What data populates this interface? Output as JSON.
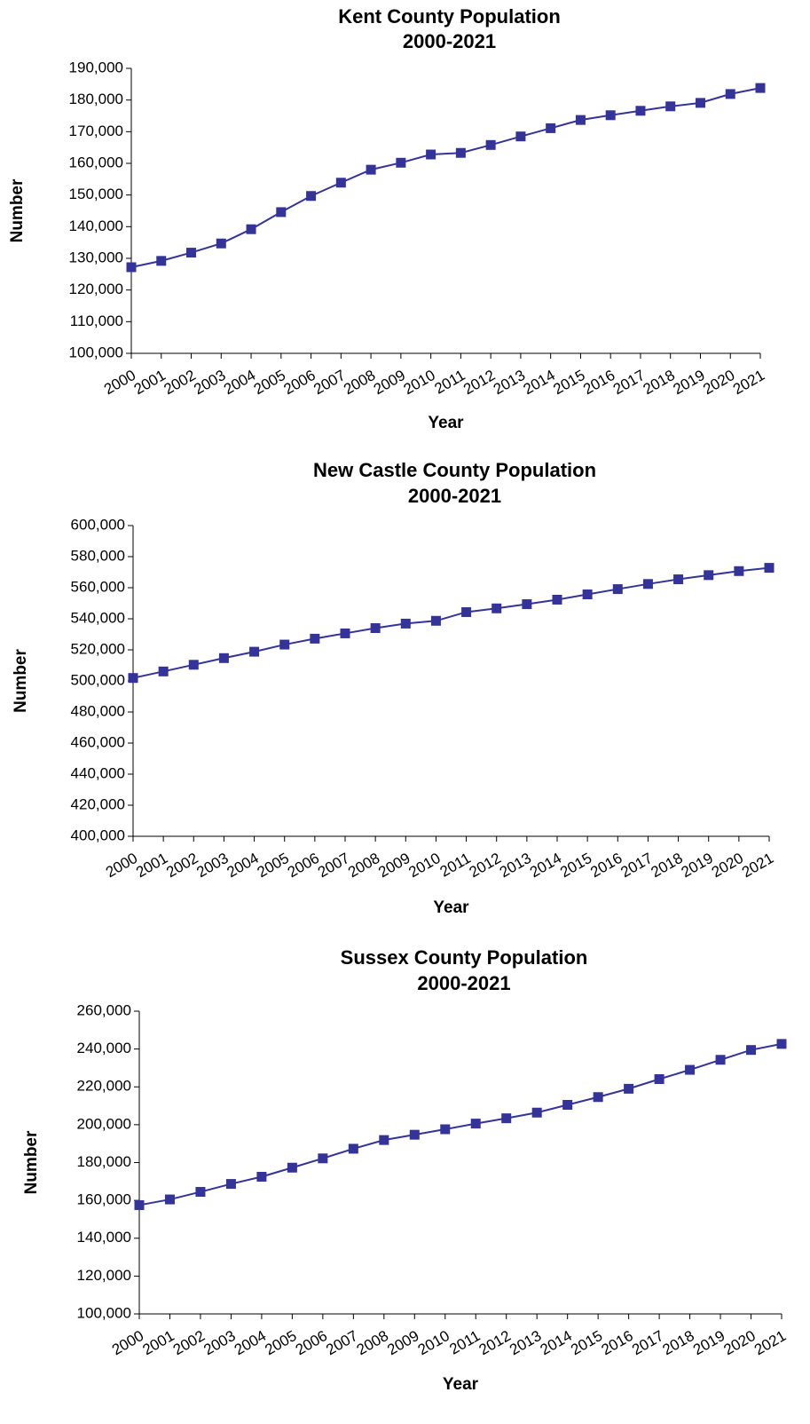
{
  "colors": {
    "series": "#333399",
    "axis": "#000000",
    "background": "#ffffff"
  },
  "chart_data": [
    {
      "type": "line",
      "title": "Kent County Population",
      "subtitle": "2000-2021",
      "xlabel": "Year",
      "ylabel": "Number",
      "ylim": [
        100000,
        190000
      ],
      "ytick_step": 10000,
      "yticks": [
        "100,000",
        "110,000",
        "120,000",
        "130,000",
        "140,000",
        "150,000",
        "160,000",
        "170,000",
        "180,000",
        "190,000"
      ],
      "grid": false,
      "x": [
        "2000",
        "2001",
        "2002",
        "2003",
        "2004",
        "2005",
        "2006",
        "2007",
        "2008",
        "2009",
        "2010",
        "2011",
        "2012",
        "2013",
        "2014",
        "2015",
        "2016",
        "2017",
        "2018",
        "2019",
        "2020",
        "2021"
      ],
      "series": [
        {
          "marker": "square",
          "color": "#333399",
          "values": [
            127200,
            129200,
            131800,
            134700,
            139200,
            144600,
            149700,
            153900,
            158000,
            160200,
            162800,
            163300,
            165800,
            168500,
            171100,
            173700,
            175200,
            176600,
            178000,
            179100,
            181900,
            183800
          ]
        }
      ]
    },
    {
      "type": "line",
      "title": "New Castle County Population",
      "subtitle": "2000-2021",
      "xlabel": "Year",
      "ylabel": "Number",
      "ylim": [
        400000,
        600000
      ],
      "ytick_step": 20000,
      "yticks": [
        "400,000",
        "420,000",
        "440,000",
        "460,000",
        "480,000",
        "500,000",
        "520,000",
        "540,000",
        "560,000",
        "580,000",
        "600,000"
      ],
      "grid": false,
      "x": [
        "2000",
        "2001",
        "2002",
        "2003",
        "2004",
        "2005",
        "2006",
        "2007",
        "2008",
        "2009",
        "2010",
        "2011",
        "2012",
        "2013",
        "2014",
        "2015",
        "2016",
        "2017",
        "2018",
        "2019",
        "2020",
        "2021"
      ],
      "series": [
        {
          "marker": "square",
          "color": "#333399",
          "values": [
            501900,
            506100,
            510400,
            514700,
            518800,
            523400,
            527200,
            530600,
            534000,
            536900,
            538700,
            544300,
            546700,
            549400,
            552300,
            555700,
            559100,
            562400,
            565400,
            568100,
            570700,
            572800
          ]
        }
      ]
    },
    {
      "type": "line",
      "title": "Sussex County Population",
      "subtitle": "2000-2021",
      "xlabel": "Year",
      "ylabel": "Number",
      "ylim": [
        100000,
        260000
      ],
      "ytick_step": 20000,
      "yticks": [
        "100,000",
        "120,000",
        "140,000",
        "160,000",
        "180,000",
        "200,000",
        "220,000",
        "240,000",
        "260,000"
      ],
      "grid": false,
      "x": [
        "2000",
        "2001",
        "2002",
        "2003",
        "2004",
        "2005",
        "2006",
        "2007",
        "2008",
        "2009",
        "2010",
        "2011",
        "2012",
        "2013",
        "2014",
        "2015",
        "2016",
        "2017",
        "2018",
        "2019",
        "2020",
        "2021"
      ],
      "series": [
        {
          "marker": "square",
          "color": "#333399",
          "values": [
            157500,
            160500,
            164500,
            168700,
            172500,
            177300,
            182200,
            187300,
            191900,
            194700,
            197600,
            200600,
            203400,
            206400,
            210500,
            214600,
            219000,
            224100,
            229000,
            234300,
            239500,
            242700
          ]
        }
      ]
    }
  ]
}
